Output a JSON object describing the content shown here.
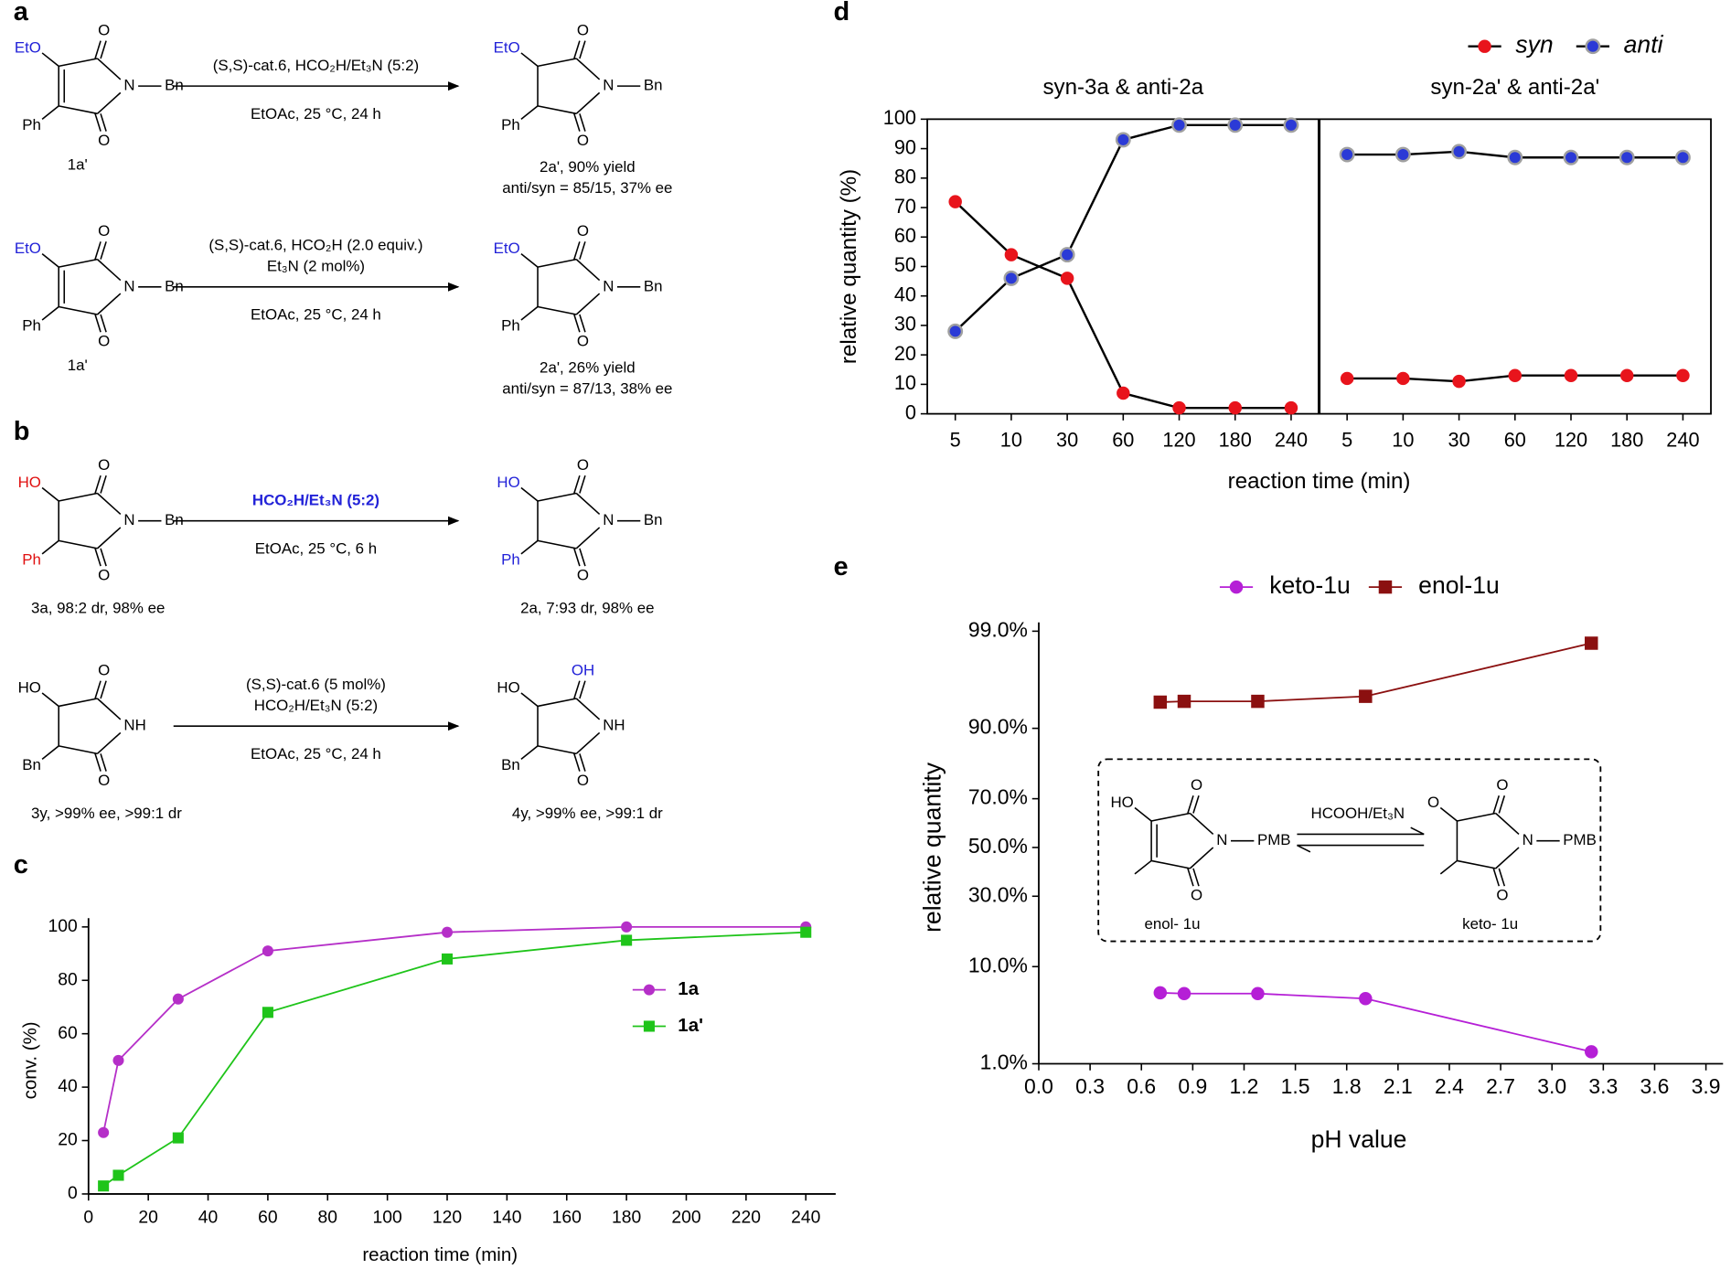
{
  "panel_labels": [
    "a",
    "b",
    "c",
    "d",
    "e"
  ],
  "scheme_rows": [
    {
      "reactant": {
        "subs": [
          "EtO",
          "Ph"
        ],
        "sub_colors": [
          "#2222d8",
          "#000000"
        ],
        "o": [
          "O",
          "O"
        ],
        "n": "N",
        "r": "Bn",
        "captions": [
          "1a'"
        ]
      },
      "above": [
        "(S,S)-cat.6, HCO₂H/Et₃N (5:2)"
      ],
      "below": [
        "EtOAc, 25 °C, 24 h"
      ],
      "product": {
        "subs": [
          "EtO",
          "Ph"
        ],
        "sub_colors": [
          "#2222d8",
          "#000000"
        ],
        "o": [
          "O",
          "O"
        ],
        "n": "N",
        "r": "Bn",
        "captions": [
          "2a', 90% yield",
          "anti/syn = 85/15, 37% ee"
        ]
      }
    },
    {
      "reactant": {
        "subs": [
          "EtO",
          "Ph"
        ],
        "sub_colors": [
          "#2222d8",
          "#000000"
        ],
        "o": [
          "O",
          "O"
        ],
        "n": "N",
        "r": "Bn",
        "captions": [
          "1a'"
        ]
      },
      "above": [
        "(S,S)-cat.6, HCO₂H (2.0 equiv.)",
        "Et₃N (2 mol%)"
      ],
      "below": [
        "EtOAc, 25 °C, 24 h"
      ],
      "product": {
        "subs": [
          "EtO",
          "Ph"
        ],
        "sub_colors": [
          "#2222d8",
          "#000000"
        ],
        "o": [
          "O",
          "O"
        ],
        "n": "N",
        "r": "Bn",
        "captions": [
          "2a', 26% yield",
          "anti/syn = 87/13, 38% ee"
        ]
      }
    },
    {
      "reactant": {
        "subs": [
          "HO",
          "Ph"
        ],
        "sub_colors": [
          "#e01010",
          "#e01010"
        ],
        "o": [
          "O",
          "O"
        ],
        "n": "N",
        "r": "Bn",
        "captions": [
          "3a, 98:2 dr, 98% ee"
        ]
      },
      "above": [
        "HCO₂H/Et₃N (5:2)"
      ],
      "above_color": "#2222d8",
      "below": [
        "EtOAc, 25 °C, 6 h"
      ],
      "product": {
        "subs": [
          "HO",
          "Ph"
        ],
        "sub_colors": [
          "#2222d8",
          "#2222d8"
        ],
        "o": [
          "O",
          "O"
        ],
        "n": "N",
        "r": "Bn",
        "captions": [
          "2a, 7:93 dr, 98% ee"
        ]
      }
    },
    {
      "reactant": {
        "subs": [
          "HO",
          "Bn"
        ],
        "o": [
          "O",
          "O"
        ],
        "n": "NH",
        "captions": [
          "3y, >99% ee, >99:1 dr"
        ]
      },
      "above": [
        "(S,S)-cat.6 (5 mol%)",
        "HCO₂H/Et₃N (5:2)"
      ],
      "below": [
        "EtOAc, 25 °C, 24 h"
      ],
      "product": {
        "subs": [
          "HO",
          "Bn"
        ],
        "o": [
          "OH",
          "O"
        ],
        "o_colors": [
          "#2222d8",
          "#000000"
        ],
        "n": "NH",
        "captions": [
          "4y, >99% ee, >99:1 dr"
        ]
      }
    }
  ],
  "chart_data": [
    {
      "type": "line",
      "x": [
        5,
        10,
        30,
        60,
        120,
        180,
        240
      ],
      "series": [
        {
          "name": "1a",
          "color": "#b52fc8",
          "marker": "circle",
          "values": [
            23,
            50,
            73,
            91,
            98,
            100,
            100
          ]
        },
        {
          "name": "1a'",
          "color": "#1fc41a",
          "marker": "square",
          "values": [
            3,
            7,
            21,
            68,
            88,
            95,
            98
          ]
        }
      ],
      "xlim": [
        0,
        250
      ],
      "xticks": [
        0,
        20,
        40,
        60,
        80,
        100,
        120,
        140,
        160,
        180,
        200,
        220,
        240
      ],
      "ylim": [
        0,
        100
      ],
      "yticks": [
        0,
        20,
        40,
        60,
        80,
        100
      ],
      "xlabel": "reaction time (min)",
      "ylabel": "conv. (%)",
      "legend": "center right"
    },
    {
      "type": "line",
      "line_color": "#000000",
      "series": [
        {
          "name": "syn",
          "color": "#e8141c",
          "marker": "circle"
        },
        {
          "name": "anti",
          "color": "#2b3ad6",
          "marker": "circle",
          "edge_color": "#a0a0a0"
        }
      ],
      "panels": [
        {
          "title": "syn-3a & anti-2a",
          "categories": [
            "5",
            "10",
            "30",
            "60",
            "120",
            "180",
            "240"
          ],
          "values": [
            [
              72,
              54,
              46,
              7,
              2,
              2,
              2
            ],
            [
              28,
              46,
              54,
              93,
              98,
              98,
              98
            ]
          ]
        },
        {
          "title": "syn-2a' & anti-2a'",
          "categories": [
            "5",
            "10",
            "30",
            "60",
            "120",
            "180",
            "240"
          ],
          "values": [
            [
              12,
              12,
              11,
              13,
              13,
              13,
              13
            ],
            [
              88,
              88,
              89,
              87,
              87,
              87,
              87
            ]
          ]
        }
      ],
      "ylim": [
        0,
        100
      ],
      "yticks": [
        0,
        10,
        20,
        30,
        40,
        50,
        60,
        70,
        80,
        90,
        100
      ],
      "xlabel": "reaction time (min)",
      "ylabel": "relative quantity (%)",
      "legend": "top right"
    },
    {
      "type": "line",
      "yscale": "probit",
      "x": [
        0.71,
        0.85,
        1.28,
        1.91,
        3.23
      ],
      "series": [
        {
          "name": "keto-1u",
          "color": "#b51fd6",
          "marker": "circle",
          "values": [
            5.9,
            5.8,
            5.8,
            5.2,
            1.4
          ]
        },
        {
          "name": "enol-1u",
          "color": "#8b1010",
          "marker": "square",
          "values": [
            94.1,
            94.2,
            94.2,
            94.8,
            98.6
          ]
        }
      ],
      "xlim": [
        0,
        4
      ],
      "xticks": [
        {
          "value": 0,
          "label": "0.0"
        },
        0.3,
        0.6,
        0.9,
        1.2,
        1.5,
        1.8,
        2.1,
        2.4,
        2.7,
        {
          "value": 3,
          "label": "3.0"
        },
        3.3,
        3.6,
        3.9
      ],
      "ylim": [
        1,
        99
      ],
      "yticks": [
        {
          "value": 1,
          "label": "1.0%"
        },
        {
          "value": 10,
          "label": "10.0%"
        },
        {
          "value": 30,
          "label": "30.0%"
        },
        {
          "value": 50,
          "label": "50.0%"
        },
        {
          "value": 70,
          "label": "70.0%"
        },
        {
          "value": 90,
          "label": "90.0%"
        },
        {
          "value": 99,
          "label": "99.0%"
        }
      ],
      "xlabel": "pH value",
      "ylabel": "relative quantity",
      "legend": "top",
      "inset": {
        "reagent": "HCOOH/Et₃N",
        "enol": {
          "subs": [
            "HO"
          ],
          "o": [
            "O",
            "O"
          ],
          "n": "N",
          "r": "PMB",
          "captions": [
            "enol- 1u"
          ]
        },
        "keto": {
          "subs": [
            "O"
          ],
          "o": [
            "O",
            "O"
          ],
          "n": "N",
          "r": "PMB",
          "captions": [
            "keto- 1u"
          ]
        }
      }
    }
  ]
}
